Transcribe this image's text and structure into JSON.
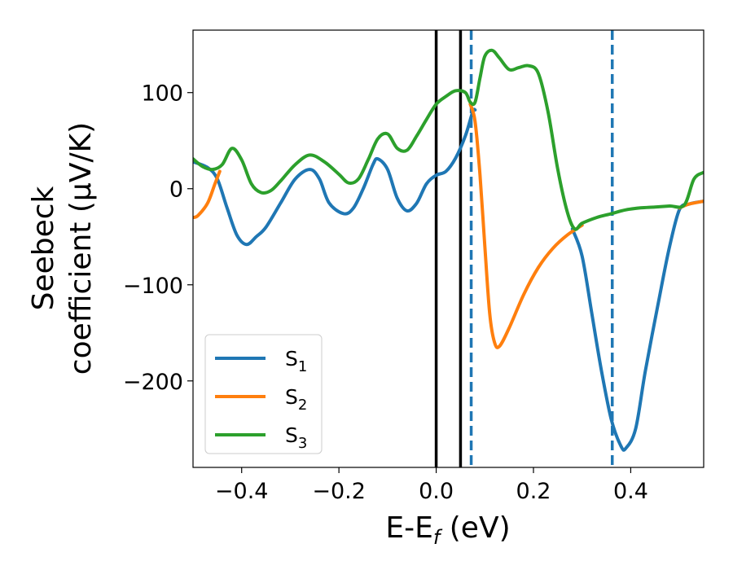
{
  "chart_data": {
    "type": "line",
    "xlabel": {
      "main": "E-E",
      "sub": "f",
      "unit": " (eV)"
    },
    "ylabel": {
      "line1": "Seebeck",
      "line2": "coefficient  (μV/K)"
    },
    "xlim": [
      -0.5,
      0.55
    ],
    "ylim": [
      -290,
      165
    ],
    "x_ticks": [
      -0.4,
      -0.2,
      0.0,
      0.2,
      0.4
    ],
    "x_tick_labels": [
      "−0.4",
      "−0.2",
      "0.0",
      "0.2",
      "0.4"
    ],
    "y_ticks": [
      100,
      0,
      -100,
      -200
    ],
    "y_tick_labels": [
      "100",
      "0",
      "−100",
      "−200"
    ],
    "grid": false,
    "legend_position": "lower-left",
    "vertical_lines": [
      {
        "x": 0.0,
        "style": "solid",
        "color": "#000000"
      },
      {
        "x": 0.05,
        "style": "solid",
        "color": "#000000"
      },
      {
        "x": 0.072,
        "style": "dashed",
        "color": "#1f77b4"
      },
      {
        "x": 0.362,
        "style": "dashed",
        "color": "#1f77b4"
      }
    ],
    "series": [
      {
        "name": "S",
        "sub": "1",
        "color": "#1f77b4",
        "points": [
          [
            -0.5,
            28
          ],
          [
            -0.47,
            22
          ],
          [
            -0.45,
            10
          ],
          [
            -0.43,
            -20
          ],
          [
            -0.41,
            -48
          ],
          [
            -0.39,
            -58
          ],
          [
            -0.37,
            -50
          ],
          [
            -0.35,
            -40
          ],
          [
            -0.32,
            -15
          ],
          [
            -0.29,
            10
          ],
          [
            -0.26,
            20
          ],
          [
            -0.24,
            10
          ],
          [
            -0.22,
            -15
          ],
          [
            -0.19,
            -26
          ],
          [
            -0.17,
            -20
          ],
          [
            -0.15,
            0
          ],
          [
            -0.13,
            25
          ],
          [
            -0.12,
            31
          ],
          [
            -0.1,
            20
          ],
          [
            -0.08,
            -10
          ],
          [
            -0.06,
            -23
          ],
          [
            -0.04,
            -15
          ],
          [
            -0.02,
            5
          ],
          [
            0.0,
            14
          ],
          [
            0.02,
            18
          ],
          [
            0.04,
            32
          ],
          [
            0.06,
            55
          ],
          [
            0.075,
            80
          ],
          [
            0.08,
            82
          ]
        ]
      },
      {
        "name": "S",
        "sub": "1",
        "color": "#1f77b4",
        "continuation": true,
        "points": [
          [
            0.28,
            -42
          ],
          [
            0.3,
            -70
          ],
          [
            0.32,
            -130
          ],
          [
            0.34,
            -190
          ],
          [
            0.36,
            -240
          ],
          [
            0.38,
            -268
          ],
          [
            0.39,
            -270
          ],
          [
            0.41,
            -250
          ],
          [
            0.43,
            -190
          ],
          [
            0.46,
            -110
          ],
          [
            0.48,
            -60
          ],
          [
            0.5,
            -22
          ],
          [
            0.52,
            -16
          ],
          [
            0.55,
            -13
          ]
        ]
      },
      {
        "name": "S",
        "sub": "2",
        "color": "#ff7f0e",
        "points": [
          [
            -0.5,
            -30
          ],
          [
            -0.49,
            -28
          ],
          [
            -0.47,
            -15
          ],
          [
            -0.455,
            5
          ],
          [
            -0.445,
            18
          ]
        ]
      },
      {
        "name": "S",
        "sub": "2",
        "color": "#ff7f0e",
        "continuation": true,
        "points": [
          [
            0.07,
            88
          ],
          [
            0.08,
            70
          ],
          [
            0.09,
            15
          ],
          [
            0.1,
            -60
          ],
          [
            0.11,
            -130
          ],
          [
            0.12,
            -160
          ],
          [
            0.13,
            -164
          ],
          [
            0.15,
            -145
          ],
          [
            0.18,
            -110
          ],
          [
            0.21,
            -82
          ],
          [
            0.24,
            -62
          ],
          [
            0.27,
            -48
          ],
          [
            0.3,
            -38
          ]
        ]
      },
      {
        "name": "S",
        "sub": "2",
        "color": "#ff7f0e",
        "continuation": true,
        "points": [
          [
            0.5,
            -20
          ],
          [
            0.52,
            -16
          ],
          [
            0.55,
            -13
          ]
        ]
      },
      {
        "name": "S",
        "sub": "3",
        "color": "#2ca02c",
        "points": [
          [
            -0.5,
            31
          ],
          [
            -0.48,
            23
          ],
          [
            -0.46,
            20
          ],
          [
            -0.44,
            25
          ],
          [
            -0.42,
            42
          ],
          [
            -0.4,
            30
          ],
          [
            -0.38,
            5
          ],
          [
            -0.36,
            -4
          ],
          [
            -0.34,
            -2
          ],
          [
            -0.32,
            8
          ],
          [
            -0.29,
            25
          ],
          [
            -0.26,
            35
          ],
          [
            -0.23,
            28
          ],
          [
            -0.2,
            15
          ],
          [
            -0.18,
            6
          ],
          [
            -0.16,
            10
          ],
          [
            -0.14,
            30
          ],
          [
            -0.12,
            52
          ],
          [
            -0.1,
            57
          ],
          [
            -0.08,
            42
          ],
          [
            -0.06,
            40
          ],
          [
            -0.04,
            55
          ],
          [
            -0.02,
            72
          ],
          [
            0.0,
            88
          ],
          [
            0.02,
            96
          ],
          [
            0.04,
            102
          ],
          [
            0.06,
            100
          ],
          [
            0.07,
            90
          ],
          [
            0.08,
            90
          ],
          [
            0.09,
            115
          ],
          [
            0.1,
            138
          ],
          [
            0.115,
            144
          ],
          [
            0.13,
            136
          ],
          [
            0.15,
            124
          ],
          [
            0.17,
            126
          ],
          [
            0.19,
            128
          ],
          [
            0.21,
            120
          ],
          [
            0.23,
            80
          ],
          [
            0.25,
            20
          ],
          [
            0.27,
            -25
          ],
          [
            0.285,
            -42
          ],
          [
            0.3,
            -36
          ],
          [
            0.33,
            -30
          ],
          [
            0.36,
            -26
          ],
          [
            0.39,
            -22
          ],
          [
            0.42,
            -20
          ],
          [
            0.45,
            -19
          ],
          [
            0.48,
            -18
          ],
          [
            0.51,
            -17
          ],
          [
            0.53,
            10
          ],
          [
            0.55,
            17
          ]
        ]
      }
    ]
  }
}
